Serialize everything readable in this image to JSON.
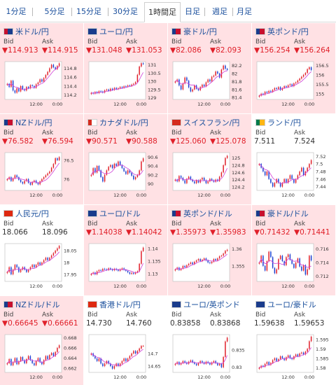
{
  "tabs": [
    {
      "label": "1分足",
      "selected": false
    },
    {
      "label": "5分足",
      "selected": false
    },
    {
      "label": "15分足",
      "selected": false
    },
    {
      "label": "30分足",
      "selected": false
    },
    {
      "label": "1時間足",
      "selected": true
    },
    {
      "label": "日足",
      "selected": false
    },
    {
      "label": "週足",
      "selected": false
    },
    {
      "label": "月足",
      "selected": false
    }
  ],
  "labels": {
    "bid": "Bid",
    "ask": "Ask"
  },
  "colors": {
    "down": "#e0202a",
    "flat": "#333333",
    "link": "#1a4f9c",
    "cell_highlight": "#ffe1e4",
    "candle_up": "#e0202a",
    "candle_down": "#1c3fd0",
    "ma_line": "#d040d8"
  },
  "pairs": [
    {
      "title": "米ドル/円",
      "flag": "us-flag-icon",
      "bid": "▼114.913",
      "ask": "▼114.915",
      "trend": "down",
      "highlight": true,
      "chart_data": {
        "type": "candlestick",
        "yticks": [
          "114.8",
          "114.6",
          "114.4",
          "114.2"
        ],
        "xticks": [
          "12:00",
          "0:00"
        ],
        "ylim": [
          114.1,
          114.95
        ],
        "closes": [
          114.45,
          114.38,
          114.52,
          114.3,
          114.25,
          114.35,
          114.28,
          114.4,
          114.33,
          114.3,
          114.38,
          114.35,
          114.42,
          114.4,
          114.36,
          114.44,
          114.48,
          114.55,
          114.5,
          114.58,
          114.65,
          114.72,
          114.8,
          114.88,
          114.82,
          114.78,
          114.85,
          114.91
        ]
      }
    },
    {
      "title": "ユーロ/円",
      "flag": "eu-flag-icon",
      "bid": "▼131.048",
      "ask": "▼131.053",
      "trend": "down",
      "highlight": true,
      "chart_data": {
        "type": "candlestick",
        "yticks": [
          "131",
          "130.5",
          "130",
          "129.5",
          "129"
        ],
        "xticks": [
          "12:00",
          "0:00"
        ],
        "ylim": [
          128.9,
          131.2
        ],
        "closes": [
          129.3,
          129.25,
          129.35,
          129.28,
          129.4,
          129.38,
          129.32,
          129.45,
          129.5,
          129.42,
          129.55,
          129.48,
          129.6,
          129.52,
          129.58,
          129.65,
          129.6,
          129.7,
          129.68,
          129.75,
          129.72,
          129.8,
          129.85,
          129.95,
          130.4,
          130.9,
          131.1,
          131.05
        ]
      }
    },
    {
      "title": "豪ドル/円",
      "flag": "au-flag-icon",
      "bid": "▼82.086",
      "ask": "▼82.093",
      "trend": "down",
      "highlight": true,
      "chart_data": {
        "type": "candlestick",
        "yticks": [
          "82.2",
          "82",
          "81.8",
          "81.6",
          "81.4"
        ],
        "xticks": [
          "12:00",
          "0:00"
        ],
        "ylim": [
          81.35,
          82.3
        ],
        "closes": [
          81.8,
          81.85,
          81.7,
          81.6,
          81.75,
          81.9,
          81.82,
          81.65,
          81.55,
          81.6,
          81.7,
          81.62,
          81.58,
          81.66,
          81.72,
          81.68,
          81.78,
          81.85,
          81.8,
          81.92,
          81.95,
          82.05,
          82.0,
          81.9,
          82.1,
          82.2,
          82.12,
          82.09
        ]
      }
    },
    {
      "title": "英ポンド/円",
      "flag": "gb-flag-icon",
      "bid": "▼156.254",
      "ask": "▼156.264",
      "trend": "down",
      "highlight": true,
      "chart_data": {
        "type": "candlestick",
        "yticks": [
          "156.5",
          "156",
          "155.5",
          "155"
        ],
        "xticks": [
          "12:00",
          "0:00"
        ],
        "ylim": [
          154.7,
          156.7
        ],
        "closes": [
          154.9,
          155.0,
          154.95,
          155.1,
          155.05,
          155.15,
          155.1,
          155.2,
          155.3,
          155.25,
          155.35,
          155.2,
          155.3,
          155.4,
          155.35,
          155.45,
          155.5,
          155.4,
          155.55,
          155.6,
          155.7,
          155.8,
          155.9,
          156.0,
          156.1,
          156.3,
          156.4,
          156.25
        ]
      }
    },
    {
      "title": "NZドル/円",
      "flag": "nz-flag-icon",
      "bid": "▼76.582",
      "ask": "▼76.594",
      "trend": "down",
      "highlight": true,
      "chart_data": {
        "type": "candlestick",
        "yticks": [
          "76.5",
          "76"
        ],
        "xticks": [
          "12:00",
          "0:00"
        ],
        "ylim": [
          75.7,
          76.7
        ],
        "closes": [
          76.0,
          76.05,
          75.95,
          76.02,
          76.1,
          76.05,
          75.98,
          75.92,
          75.88,
          75.95,
          76.0,
          75.9,
          75.85,
          75.92,
          75.96,
          75.9,
          75.86,
          75.94,
          76.0,
          76.05,
          76.1,
          76.15,
          76.2,
          76.3,
          76.4,
          76.55,
          76.5,
          76.58
        ]
      }
    },
    {
      "title": "カナダドル/円",
      "flag": "ca-flag-icon",
      "bid": "▼90.571",
      "ask": "▼90.588",
      "trend": "down",
      "highlight": true,
      "chart_data": {
        "type": "candlestick",
        "yticks": [
          "90.6",
          "90.4",
          "90.2",
          "90"
        ],
        "xticks": [
          "12:00",
          "0:00"
        ],
        "ylim": [
          89.85,
          90.7
        ],
        "closes": [
          90.2,
          90.35,
          90.25,
          90.4,
          90.3,
          90.15,
          90.05,
          90.2,
          90.3,
          90.38,
          90.42,
          90.35,
          90.45,
          90.4,
          90.5,
          90.42,
          90.35,
          90.28,
          90.22,
          90.3,
          90.25,
          90.18,
          90.1,
          90.15,
          90.2,
          90.3,
          90.5,
          90.57
        ]
      }
    },
    {
      "title": "スイスフラン/円",
      "flag": "ch-flag-icon",
      "bid": "▼125.060",
      "ask": "▼125.078",
      "trend": "down",
      "highlight": true,
      "chart_data": {
        "type": "candlestick",
        "yticks": [
          "125",
          "124.8",
          "124.6",
          "124.4",
          "124.2"
        ],
        "xticks": [
          "12:00",
          "0:00"
        ],
        "ylim": [
          124.1,
          125.15
        ],
        "closes": [
          124.4,
          124.35,
          124.5,
          124.45,
          124.38,
          124.3,
          124.42,
          124.48,
          124.4,
          124.35,
          124.3,
          124.38,
          124.32,
          124.4,
          124.45,
          124.38,
          124.3,
          124.35,
          124.42,
          124.38,
          124.34,
          124.4,
          124.36,
          124.48,
          124.6,
          124.8,
          125.0,
          125.06
        ]
      }
    },
    {
      "title": "ランド/円",
      "flag": "za-flag-icon",
      "bid": "7.511",
      "ask": "7.524",
      "trend": "flat",
      "highlight": false,
      "chart_data": {
        "type": "candlestick",
        "yticks": [
          "7.52",
          "7.5",
          "7.48",
          "7.46",
          "7.44"
        ],
        "xticks": [
          "12:00",
          "0:00"
        ],
        "ylim": [
          7.43,
          7.53
        ],
        "closes": [
          7.5,
          7.49,
          7.48,
          7.47,
          7.48,
          7.46,
          7.45,
          7.44,
          7.45,
          7.46,
          7.45,
          7.44,
          7.45,
          7.46,
          7.45,
          7.46,
          7.47,
          7.46,
          7.45,
          7.46,
          7.47,
          7.48,
          7.49,
          7.47,
          7.48,
          7.49,
          7.5,
          7.51
        ]
      }
    },
    {
      "title": "人民元/円",
      "flag": "cn-flag-icon",
      "bid": "18.066",
      "ask": "18.096",
      "trend": "flat",
      "highlight": false,
      "chart_data": {
        "type": "candlestick",
        "yticks": [
          "18.05",
          "18",
          "17.95"
        ],
        "xticks": [
          "12:00",
          "0:00"
        ],
        "ylim": [
          17.92,
          18.08
        ],
        "closes": [
          17.96,
          17.98,
          17.95,
          17.97,
          17.99,
          17.98,
          17.96,
          17.97,
          17.98,
          17.97,
          17.96,
          17.97,
          17.98,
          17.99,
          17.98,
          17.99,
          18.0,
          17.99,
          18.0,
          18.01,
          18.02,
          18.01,
          18.02,
          18.03,
          18.04,
          18.05,
          18.06,
          18.07
        ]
      }
    },
    {
      "title": "ユーロ/ドル",
      "flag": "eu-flag-icon",
      "bid": "▼1.14038",
      "ask": "▼1.14042",
      "trend": "down",
      "highlight": true,
      "chart_data": {
        "type": "candlestick",
        "yticks": [
          "1.14",
          "1.135",
          "1.13"
        ],
        "xticks": [
          "12:00",
          "0:00"
        ],
        "ylim": [
          1.127,
          1.142
        ],
        "closes": [
          1.13,
          1.1305,
          1.1298,
          1.131,
          1.1315,
          1.1312,
          1.132,
          1.1318,
          1.1315,
          1.1322,
          1.1318,
          1.1314,
          1.132,
          1.1316,
          1.1312,
          1.1318,
          1.1322,
          1.1316,
          1.1312,
          1.1306,
          1.13,
          1.1304,
          1.13,
          1.1306,
          1.131,
          1.134,
          1.139,
          1.1404
        ]
      }
    },
    {
      "title": "英ポンド/ドル",
      "flag": "gb-flag-icon",
      "bid": "▼1.35973",
      "ask": "▼1.35983",
      "trend": "down",
      "highlight": true,
      "chart_data": {
        "type": "candlestick",
        "yticks": [
          "1.36",
          "1.355"
        ],
        "xticks": [
          "12:00",
          "0:00"
        ],
        "ylim": [
          1.3505,
          1.3615
        ],
        "closes": [
          1.354,
          1.3545,
          1.3538,
          1.3542,
          1.355,
          1.3546,
          1.3552,
          1.3556,
          1.356,
          1.3555,
          1.3562,
          1.3566,
          1.357,
          1.3564,
          1.3568,
          1.3572,
          1.3566,
          1.356,
          1.3558,
          1.3562,
          1.357,
          1.3566,
          1.3572,
          1.3578,
          1.358,
          1.3586,
          1.3594,
          1.3597
        ]
      }
    },
    {
      "title": "豪ドル/ドル",
      "flag": "au-flag-icon",
      "bid": "▼0.71432",
      "ask": "▼0.71441",
      "trend": "down",
      "highlight": true,
      "chart_data": {
        "type": "candlestick",
        "yticks": [
          "0.716",
          "0.714",
          "0.712"
        ],
        "xticks": [
          "12:00",
          "0:00"
        ],
        "ylim": [
          0.7112,
          0.7168
        ],
        "closes": [
          0.714,
          0.715,
          0.7135,
          0.7128,
          0.7142,
          0.7156,
          0.7148,
          0.7132,
          0.7124,
          0.713,
          0.7145,
          0.715,
          0.7142,
          0.7136,
          0.7148,
          0.7152,
          0.7144,
          0.7138,
          0.7132,
          0.714,
          0.7146,
          0.7134,
          0.7128,
          0.7136,
          0.7122,
          0.713,
          0.715,
          0.7143
        ]
      }
    },
    {
      "title": "NZドル/ドル",
      "flag": "nz-flag-icon",
      "bid": "▼0.66645",
      "ask": "▼0.66661",
      "trend": "down",
      "highlight": true,
      "chart_data": {
        "type": "candlestick",
        "yticks": [
          "0.668",
          "0.666",
          "0.664",
          "0.662"
        ],
        "xticks": [
          "12:00",
          "0:00"
        ],
        "ylim": [
          0.6612,
          0.6686
        ],
        "closes": [
          0.663,
          0.6638,
          0.6626,
          0.6632,
          0.664,
          0.6628,
          0.6634,
          0.6642,
          0.6636,
          0.663,
          0.6638,
          0.6644,
          0.6636,
          0.663,
          0.6626,
          0.6634,
          0.664,
          0.6632,
          0.6628,
          0.6636,
          0.6644,
          0.6638,
          0.6646,
          0.665,
          0.6644,
          0.6652,
          0.666,
          0.6665
        ]
      }
    },
    {
      "title": "香港ドル/円",
      "flag": "hk-flag-icon",
      "bid": "14.730",
      "ask": "14.760",
      "trend": "flat",
      "highlight": false,
      "chart_data": {
        "type": "candlestick",
        "yticks": [
          "14.7",
          "14.65"
        ],
        "xticks": [
          "12:00",
          "0:00"
        ],
        "ylim": [
          14.625,
          14.775
        ],
        "closes": [
          14.7,
          14.69,
          14.68,
          14.67,
          14.68,
          14.66,
          14.65,
          14.66,
          14.67,
          14.66,
          14.65,
          14.64,
          14.65,
          14.66,
          14.65,
          14.66,
          14.67,
          14.68,
          14.67,
          14.68,
          14.69,
          14.7,
          14.71,
          14.7,
          14.71,
          14.72,
          14.73,
          14.73
        ]
      }
    },
    {
      "title": "ユーロ/英ポンド",
      "flag": "eu-flag-icon",
      "bid": "0.83858",
      "ask": "0.83868",
      "trend": "flat",
      "highlight": false,
      "chart_data": {
        "type": "candlestick",
        "yticks": [
          "0.835",
          "0.83"
        ],
        "xticks": [
          "12:00",
          "0:00"
        ],
        "ylim": [
          0.8285,
          0.8395
        ],
        "closes": [
          0.831,
          0.8315,
          0.8308,
          0.8312,
          0.8318,
          0.8314,
          0.831,
          0.8316,
          0.832,
          0.8314,
          0.831,
          0.8306,
          0.8312,
          0.8318,
          0.8314,
          0.831,
          0.8316,
          0.8312,
          0.8308,
          0.8314,
          0.8318,
          0.8312,
          0.8306,
          0.831,
          0.83,
          0.833,
          0.8375,
          0.8386
        ]
      }
    },
    {
      "title": "ユーロ/豪ドル",
      "flag": "eu-flag-icon",
      "bid": "1.59638",
      "ask": "1.59653",
      "trend": "flat",
      "highlight": false,
      "chart_data": {
        "type": "candlestick",
        "yticks": [
          "1.595",
          "1.59",
          "1.585",
          "1.58"
        ],
        "xticks": [
          "12:00",
          "0:00"
        ],
        "ylim": [
          1.5775,
          1.5975
        ],
        "closes": [
          1.58,
          1.581,
          1.5805,
          1.582,
          1.583,
          1.5815,
          1.5825,
          1.584,
          1.585,
          1.5835,
          1.5845,
          1.586,
          1.585,
          1.584,
          1.5855,
          1.5865,
          1.585,
          1.5845,
          1.586,
          1.587,
          1.586,
          1.5875,
          1.588,
          1.587,
          1.5885,
          1.59,
          1.594,
          1.5964
        ]
      }
    }
  ]
}
